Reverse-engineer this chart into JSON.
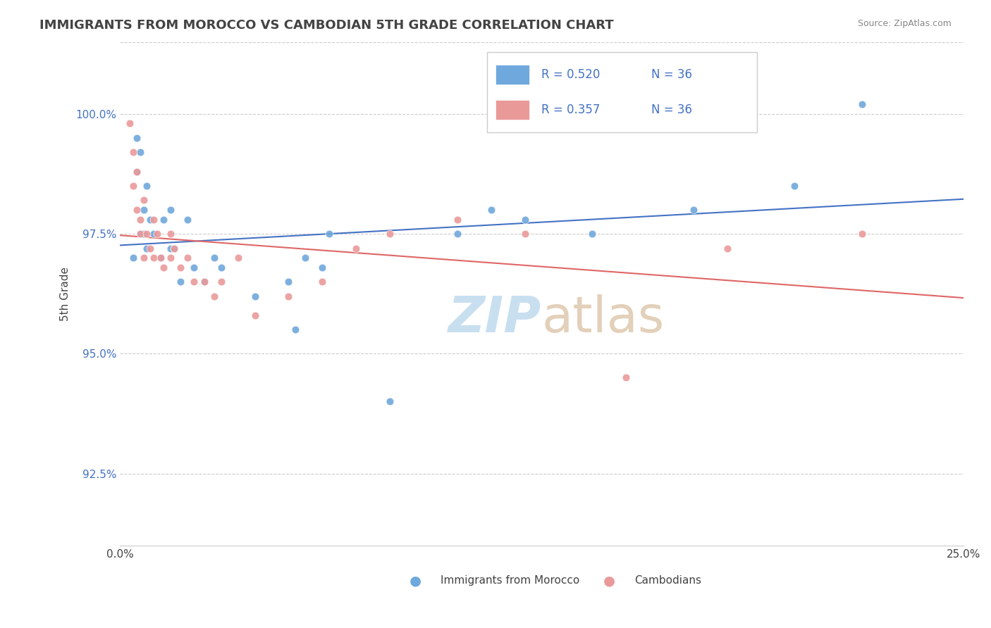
{
  "title": "IMMIGRANTS FROM MOROCCO VS CAMBODIAN 5TH GRADE CORRELATION CHART",
  "source": "Source: ZipAtlas.com",
  "ylabel": "5th Grade",
  "ytick_values": [
    92.5,
    95.0,
    97.5,
    100.0
  ],
  "xlim": [
    0.0,
    25.0
  ],
  "ylim": [
    91.0,
    101.5
  ],
  "footer_blue": "Immigrants from Morocco",
  "footer_pink": "Cambodians",
  "blue_color": "#6fa8dc",
  "pink_color": "#ea9999",
  "blue_line_color": "#4472c4",
  "pink_line_color": "#e06666",
  "title_color": "#434343",
  "source_color": "#888888",
  "blue_scatter_x": [
    0.4,
    0.5,
    0.5,
    0.6,
    0.6,
    0.7,
    0.7,
    0.8,
    0.8,
    0.9,
    1.0,
    1.2,
    1.3,
    1.5,
    1.5,
    1.6,
    1.8,
    2.0,
    2.2,
    2.5,
    2.8,
    3.0,
    4.0,
    5.0,
    5.2,
    5.5,
    6.0,
    6.2,
    8.0,
    10.0,
    11.0,
    12.0,
    14.0,
    17.0,
    20.0,
    22.0
  ],
  "blue_scatter_y": [
    97.0,
    99.5,
    98.8,
    97.5,
    99.2,
    98.0,
    97.5,
    97.2,
    98.5,
    97.8,
    97.5,
    97.0,
    97.8,
    97.2,
    98.0,
    97.2,
    96.5,
    97.8,
    96.8,
    96.5,
    97.0,
    96.8,
    96.2,
    96.5,
    95.5,
    97.0,
    96.8,
    97.5,
    94.0,
    97.5,
    98.0,
    97.8,
    97.5,
    98.0,
    98.5,
    100.2
  ],
  "pink_scatter_x": [
    0.3,
    0.4,
    0.4,
    0.5,
    0.5,
    0.6,
    0.6,
    0.7,
    0.7,
    0.8,
    0.9,
    1.0,
    1.0,
    1.1,
    1.2,
    1.3,
    1.5,
    1.5,
    1.6,
    1.8,
    2.0,
    2.2,
    2.5,
    2.8,
    3.0,
    3.5,
    4.0,
    5.0,
    6.0,
    7.0,
    8.0,
    10.0,
    12.0,
    15.0,
    18.0,
    22.0
  ],
  "pink_scatter_y": [
    99.8,
    99.2,
    98.5,
    98.8,
    98.0,
    97.8,
    97.5,
    97.0,
    98.2,
    97.5,
    97.2,
    97.8,
    97.0,
    97.5,
    97.0,
    96.8,
    97.5,
    97.0,
    97.2,
    96.8,
    97.0,
    96.5,
    96.5,
    96.2,
    96.5,
    97.0,
    95.8,
    96.2,
    96.5,
    97.2,
    97.5,
    97.8,
    97.5,
    94.5,
    97.2,
    97.5
  ]
}
